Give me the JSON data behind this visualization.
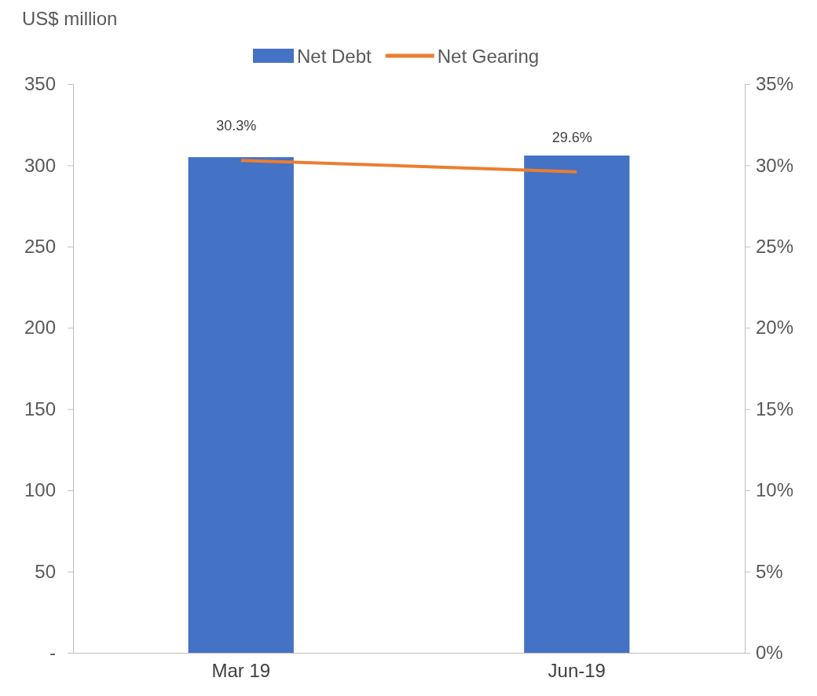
{
  "chart_data": {
    "type": "bar",
    "ylabel": "US$ million",
    "categories": [
      "Mar 19",
      "Jun-19"
    ],
    "series": [
      {
        "name": "Net Debt",
        "color": "#4472c4",
        "values": [
          305,
          306
        ]
      },
      {
        "name": "Net Gearing",
        "type": "line",
        "axis": "y2",
        "color": "#ed7d31",
        "values": [
          30.3,
          29.6
        ],
        "value_labels": [
          "30.3%",
          "29.6%"
        ],
        "marker": "none"
      }
    ],
    "ylim": [
      0,
      350
    ],
    "yticks": [
      {
        "value": 0,
        "label": "-"
      },
      50,
      100,
      150,
      200,
      250,
      300,
      350
    ],
    "y2lim": [
      0,
      35
    ],
    "y2ticks": [
      {
        "value": 0,
        "label": "0%"
      },
      {
        "value": 5,
        "label": "5%"
      },
      {
        "value": 10,
        "label": "10%"
      },
      {
        "value": 15,
        "label": "15%"
      },
      {
        "value": 20,
        "label": "20%"
      },
      {
        "value": 25,
        "label": "25%"
      },
      {
        "value": 30,
        "label": "30%"
      },
      {
        "value": 35,
        "label": "35%"
      }
    ],
    "grid": false,
    "legend": "top"
  }
}
